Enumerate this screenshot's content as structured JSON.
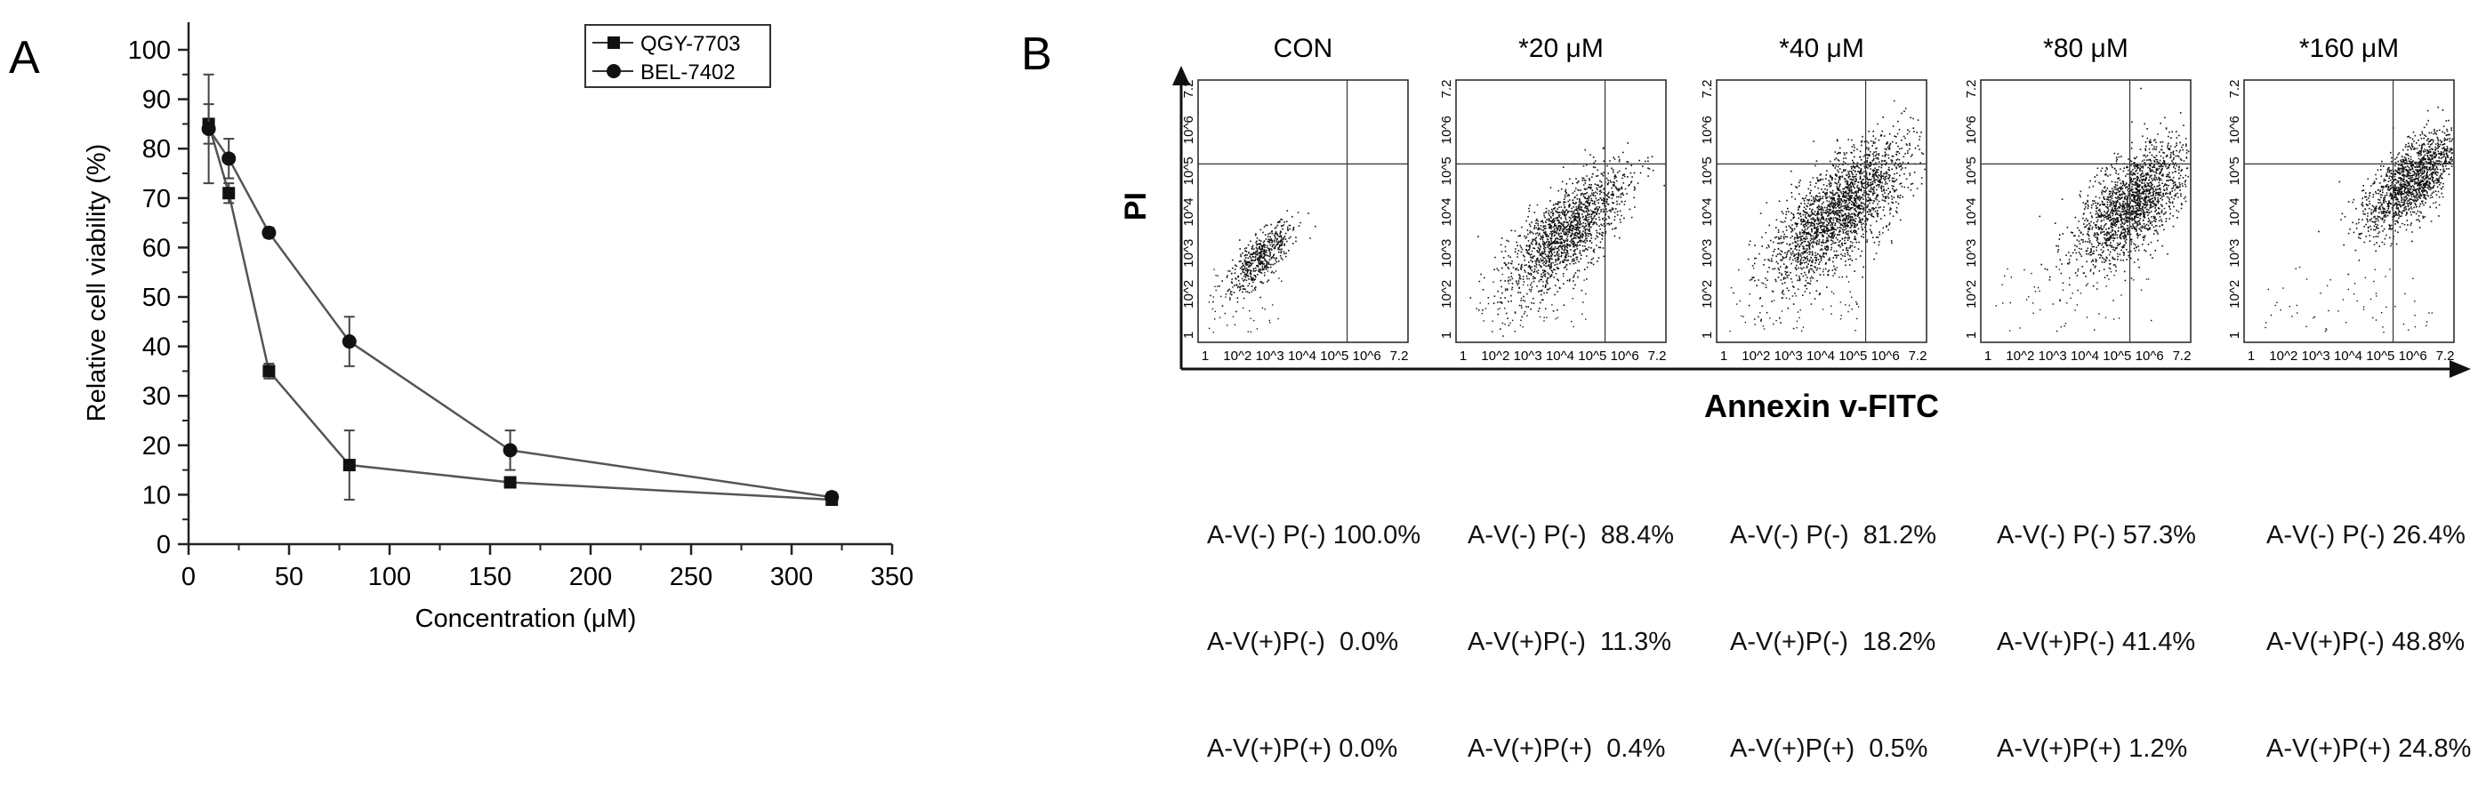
{
  "panel_a": {
    "label": "A"
  },
  "panel_b": {
    "label": "B",
    "x_axis_label": "Annexin v-FITC",
    "y_axis_label": "PI",
    "tick_labels": [
      "1",
      "10^2",
      "10^3",
      "10^4",
      "10^5",
      "10^6",
      "7.2"
    ],
    "panels": [
      {
        "title": "CON",
        "stats": [
          "A-V(-) P(-) 100.0%",
          "A-V(+)P(-)  0.0%",
          "A-V(+)P(+) 0.0%"
        ]
      },
      {
        "title": "*20 μM",
        "stats": [
          "A-V(-) P(-)  88.4%",
          "A-V(+)P(-)  11.3%",
          "A-V(+)P(+)  0.4%"
        ]
      },
      {
        "title": "*40 μM",
        "stats": [
          "A-V(-) P(-)  81.2%",
          "A-V(+)P(-)  18.2%",
          "A-V(+)P(+)  0.5%"
        ]
      },
      {
        "title": "*80 μM",
        "stats": [
          "A-V(-) P(-) 57.3%",
          "A-V(+)P(-) 41.4%",
          "A-V(+)P(+) 1.2%"
        ]
      },
      {
        "title": "*160 μM",
        "stats": [
          "A-V(-) P(-) 26.4%",
          "A-V(+)P(-) 48.8%",
          "A-V(+)P(+) 24.8%"
        ]
      }
    ]
  },
  "chart_data": {
    "type": "line",
    "xlabel": "Concentration (μM)",
    "ylabel": "Relative cell viability (%)",
    "xlim": [
      0,
      350
    ],
    "ylim": [
      0,
      100
    ],
    "xticks": [
      0,
      50,
      100,
      150,
      200,
      250,
      300,
      350
    ],
    "yticks": [
      0,
      10,
      20,
      30,
      40,
      50,
      60,
      70,
      80,
      90,
      100
    ],
    "legend_position": "top-right",
    "series": [
      {
        "name": "QGY-7703",
        "marker": "square",
        "x": [
          10,
          20,
          40,
          80,
          160,
          320
        ],
        "values": [
          85,
          71,
          35,
          16,
          12.5,
          9
        ],
        "errors": [
          4,
          2,
          1.5,
          7,
          1,
          1
        ]
      },
      {
        "name": "BEL-7402",
        "marker": "circle",
        "x": [
          10,
          20,
          40,
          80,
          160,
          320
        ],
        "values": [
          84,
          78,
          63,
          41,
          19,
          9.5
        ],
        "errors": [
          11,
          4,
          1,
          5,
          4,
          1
        ]
      }
    ]
  }
}
